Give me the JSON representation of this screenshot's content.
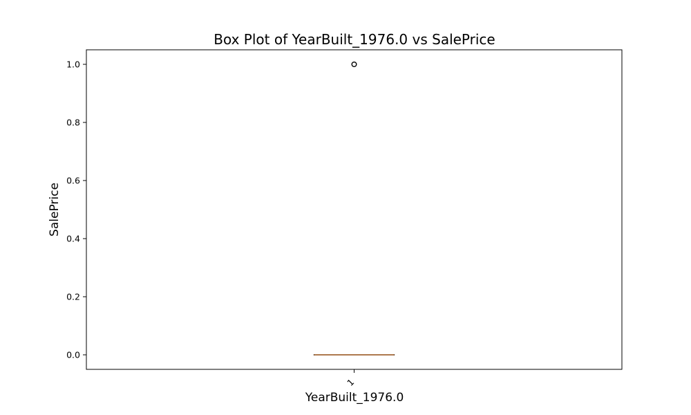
{
  "chart_data": {
    "type": "box",
    "title": "Box Plot of YearBuilt_1976.0 vs SalePrice",
    "xlabel": "YearBuilt_1976.0",
    "ylabel": "SalePrice",
    "categories": [
      "1"
    ],
    "ylim": [
      -0.05,
      1.05
    ],
    "yticks": [
      "0.0",
      "0.2",
      "0.4",
      "0.6",
      "0.8",
      "1.0"
    ],
    "grid": false,
    "boxes": [
      {
        "category": "1",
        "min": 0.0,
        "q1": 0.0,
        "median": 0.0,
        "q3": 0.0,
        "max": 0.0,
        "outliers": [
          1.0
        ]
      }
    ],
    "colors": {
      "box": "#000000",
      "median": "#d68f54",
      "outlier": "#000000"
    }
  }
}
